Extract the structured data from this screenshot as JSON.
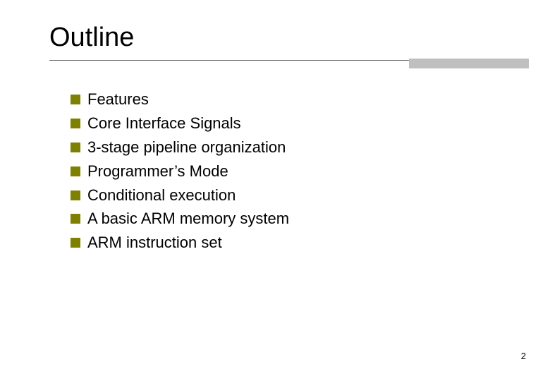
{
  "title": "Outline",
  "bullets": [
    "Features",
    "Core Interface Signals",
    "3-stage pipeline organization",
    "Programmer’s Mode",
    "Conditional execution",
    "A basic ARM memory system",
    "ARM instruction set"
  ],
  "page_number": "2",
  "style": {
    "title_fontsize": 38,
    "title_color": "#000000",
    "bullet_fontsize": 22,
    "bullet_color": "#000000",
    "bullet_marker_color": "#808000",
    "bullet_marker_size": 14,
    "rule_color": "#666666",
    "accent_color": "#bfbfbf",
    "accent_width": 170,
    "accent_height": 14,
    "background_color": "#ffffff",
    "page_number_fontsize": 13
  }
}
